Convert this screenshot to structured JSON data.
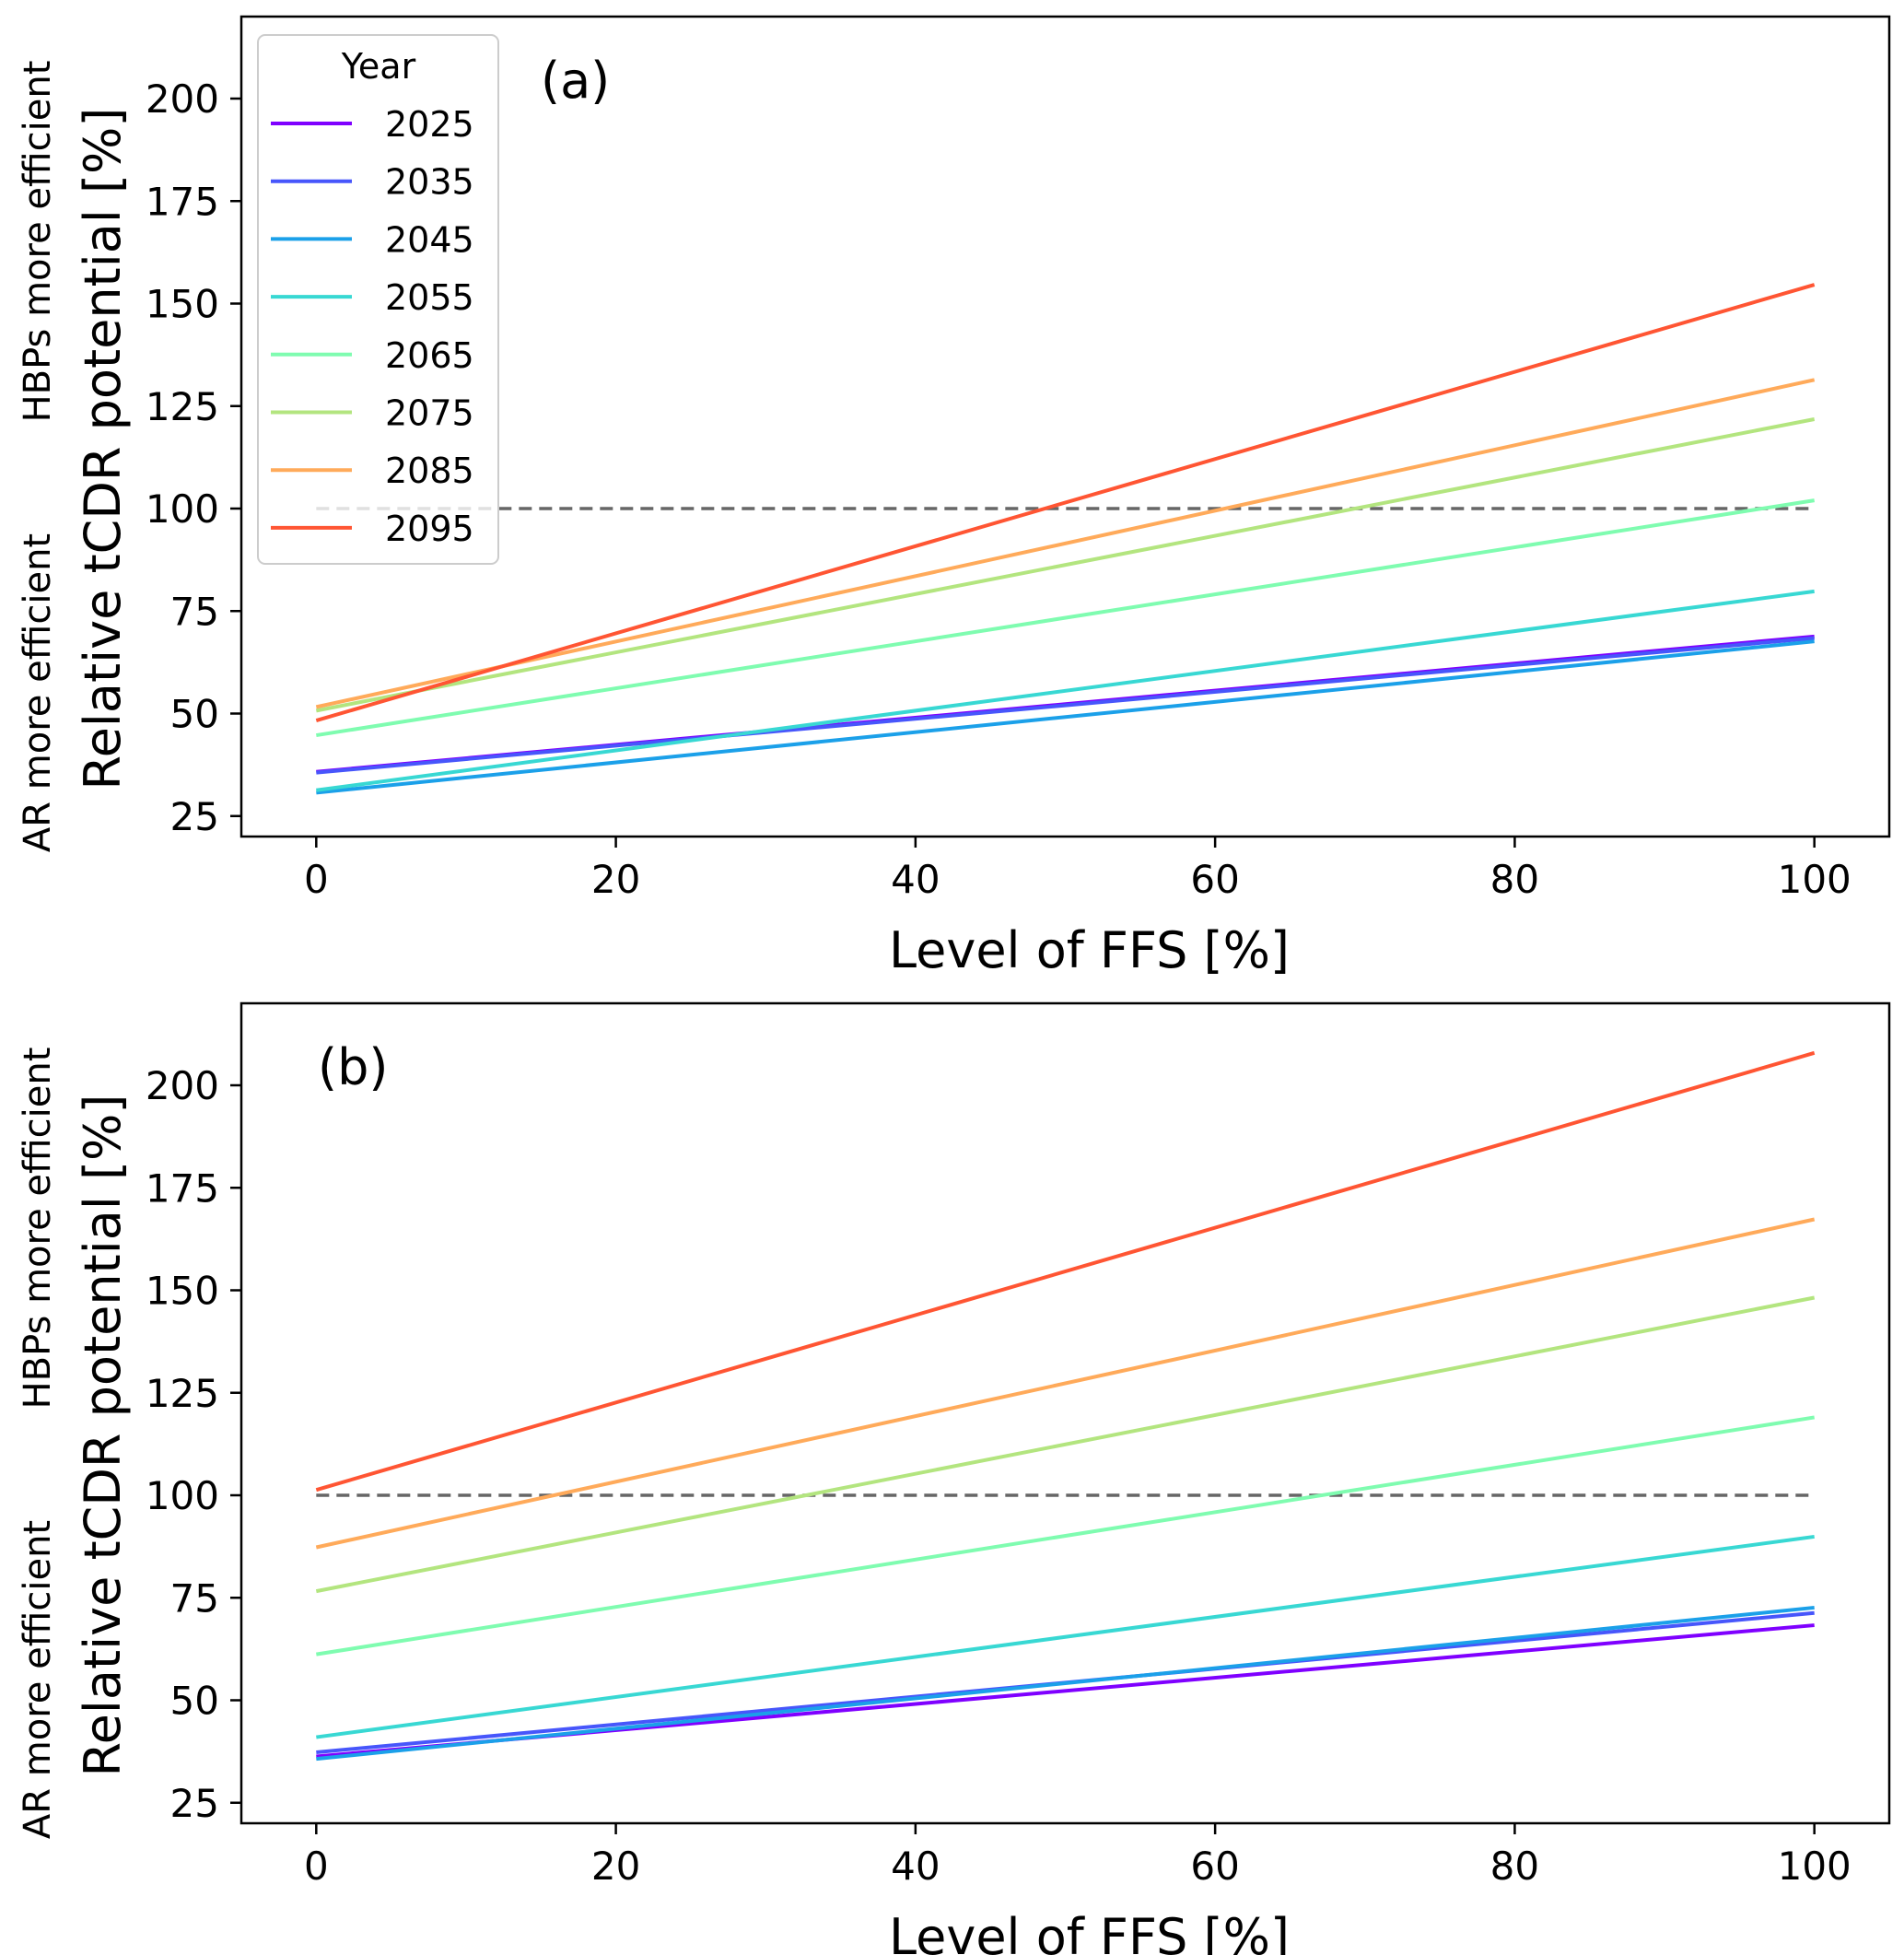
{
  "chart_data": [
    {
      "type": "line",
      "panel_label": "(a)",
      "xlabel": "Level of FFS [%]",
      "ylabel": "Relative tCDR potential [%]",
      "ylabel_top": "HBPs more efficient",
      "ylabel_bottom": "AR more efficient",
      "xlim": [
        -5,
        105
      ],
      "ylim": [
        20,
        220
      ],
      "xticks": [
        0,
        20,
        40,
        60,
        80,
        100
      ],
      "yticks": [
        25,
        50,
        75,
        100,
        125,
        150,
        175,
        200
      ],
      "grid": false,
      "legend": {
        "title": "Year",
        "placement": "top-left"
      },
      "reference_line": {
        "y": 100,
        "x": [
          0,
          100
        ],
        "style": "dashed",
        "color": "#666666"
      },
      "x": [
        0,
        100
      ],
      "series": [
        {
          "name": "2025",
          "color": "#7f00ff",
          "values": [
            35.8,
            68.8
          ]
        },
        {
          "name": "2035",
          "color": "#4756fb",
          "values": [
            35.6,
            68.4
          ]
        },
        {
          "name": "2045",
          "color": "#1ba0e9",
          "values": [
            30.7,
            67.6
          ]
        },
        {
          "name": "2055",
          "color": "#38d8d3",
          "values": [
            31.3,
            79.8
          ]
        },
        {
          "name": "2065",
          "color": "#7ffcb0",
          "values": [
            44.7,
            102.0
          ]
        },
        {
          "name": "2075",
          "color": "#b3e57f",
          "values": [
            50.7,
            121.8
          ]
        },
        {
          "name": "2085",
          "color": "#ffaa5a",
          "values": [
            51.6,
            131.4
          ]
        },
        {
          "name": "2095",
          "color": "#ff5533",
          "values": [
            48.3,
            154.6
          ]
        }
      ]
    },
    {
      "type": "line",
      "panel_label": "(b)",
      "xlabel": "Level of FFS [%]",
      "ylabel": "Relative tCDR potential [%]",
      "ylabel_top": "HBPs more efficient",
      "ylabel_bottom": "AR more efficient",
      "xlim": [
        -5,
        105
      ],
      "ylim": [
        20,
        220
      ],
      "xticks": [
        0,
        20,
        40,
        60,
        80,
        100
      ],
      "yticks": [
        25,
        50,
        75,
        100,
        125,
        150,
        175,
        200
      ],
      "grid": false,
      "reference_line": {
        "y": 100,
        "x": [
          0,
          100
        ],
        "style": "dashed",
        "color": "#666666"
      },
      "x": [
        0,
        100
      ],
      "series": [
        {
          "name": "2025",
          "color": "#7f00ff",
          "values": [
            36.3,
            68.3
          ]
        },
        {
          "name": "2035",
          "color": "#4756fb",
          "values": [
            37.3,
            71.3
          ]
        },
        {
          "name": "2045",
          "color": "#1ba0e9",
          "values": [
            35.7,
            72.6
          ]
        },
        {
          "name": "2055",
          "color": "#38d8d3",
          "values": [
            41.0,
            89.9
          ]
        },
        {
          "name": "2065",
          "color": "#7ffcb0",
          "values": [
            61.2,
            119.0
          ]
        },
        {
          "name": "2075",
          "color": "#b3e57f",
          "values": [
            76.6,
            148.2
          ]
        },
        {
          "name": "2085",
          "color": "#ffaa5a",
          "values": [
            87.3,
            167.3
          ]
        },
        {
          "name": "2095",
          "color": "#ff5533",
          "values": [
            101.3,
            207.9
          ]
        }
      ]
    }
  ]
}
